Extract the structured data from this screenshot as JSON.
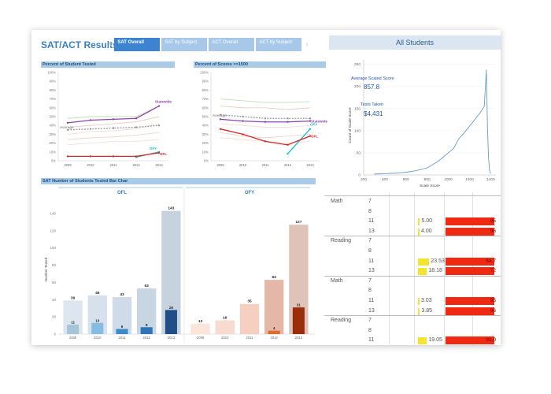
{
  "header": {
    "title": "SAT/ACT Results",
    "tabs": [
      {
        "label": "SAT Overall",
        "active": true
      },
      {
        "label": "SAT by Subject",
        "active": false
      },
      {
        "label": "ACT Overall",
        "active": false
      },
      {
        "label": "ACT by Subject",
        "active": false
      }
    ],
    "prev_arrow": "‹",
    "next_arrow": "›"
  },
  "panels": {
    "percent_tested_title": "Percent of Student Tested",
    "percent_1500_title": "Percent of Scores >=1500",
    "bar_chart_title": "SAT Number of Students Tested Bar Char",
    "all_students_title": "All Students"
  },
  "kpis": {
    "avg_label": "Average Scaled Score",
    "avg_value": "857.8",
    "tests_label": "Tests Taken",
    "tests_value": "$4,431"
  },
  "colors": {
    "accent": "#3a7fc1",
    "statewide": "#8e44ad",
    "ofl": "#d62728",
    "ofy": "#17becf",
    "yellow_bar": "#f3e52b",
    "red_bar": "#f02a12"
  },
  "chart_data": [
    {
      "type": "line",
      "title": "Percent of Student Tested",
      "x": [
        "2009",
        "2010",
        "2011",
        "2012",
        "2013"
      ],
      "ylim": [
        0,
        100
      ],
      "yticks": [
        "0%",
        "10%",
        "20%",
        "30%",
        "40%",
        "50%",
        "60%",
        "70%",
        "80%",
        "90%",
        "100%"
      ],
      "series": [
        {
          "name": "Statewide",
          "values": [
            43,
            46,
            47,
            48,
            62
          ],
          "color": "#8e44ad"
        },
        {
          "name": "Average",
          "values": [
            35,
            36,
            37,
            38,
            40
          ],
          "color": "#999999"
        },
        {
          "name": "OFL",
          "values": [
            5,
            5,
            5,
            5,
            9
          ],
          "color": "#d62728"
        },
        {
          "name": "OFY",
          "values": [
            null,
            null,
            null,
            4,
            10
          ],
          "color": "#17becf"
        },
        {
          "values": [
            48,
            50,
            50,
            50,
            62
          ],
          "color": "#b7dbb4"
        },
        {
          "values": [
            38,
            40,
            42,
            44,
            50
          ],
          "color": "#e8c3bc"
        },
        {
          "values": [
            30,
            33,
            34,
            36,
            42
          ],
          "color": "#f1d7d0"
        },
        {
          "values": [
            24,
            26,
            27,
            29,
            32
          ],
          "color": "#ecd0c7"
        },
        {
          "values": [
            18,
            20,
            22,
            22,
            24
          ],
          "color": "#f3dbd2"
        }
      ]
    },
    {
      "type": "line",
      "title": "Percent of Scores >=1500",
      "x": [
        "2009",
        "2010",
        "2011",
        "2012",
        "2013"
      ],
      "ylim": [
        0,
        100
      ],
      "yticks": [
        "0%",
        "10%",
        "20%",
        "30%",
        "40%",
        "50%",
        "60%",
        "70%",
        "80%",
        "90%",
        "100%"
      ],
      "series": [
        {
          "name": "Statewide",
          "values": [
            47,
            45,
            44,
            44,
            45
          ],
          "color": "#8e44ad"
        },
        {
          "name": "Average",
          "values": [
            52,
            50,
            48,
            48,
            48
          ],
          "color": "#999999"
        },
        {
          "name": "OFL",
          "values": [
            36,
            30,
            22,
            18,
            28
          ],
          "color": "#d62728"
        },
        {
          "name": "OFY",
          "values": [
            null,
            null,
            null,
            8,
            36
          ],
          "color": "#17becf"
        },
        {
          "values": [
            70,
            68,
            66,
            66,
            67
          ],
          "color": "#b7dbb4"
        },
        {
          "values": [
            62,
            60,
            60,
            58,
            60
          ],
          "color": "#e8c3bc"
        },
        {
          "values": [
            42,
            40,
            38,
            38,
            40
          ],
          "color": "#f1d7d0"
        },
        {
          "values": [
            32,
            28,
            26,
            28,
            30
          ],
          "color": "#ecd0c7"
        },
        {
          "values": [
            26,
            24,
            22,
            20,
            22
          ],
          "color": "#f3dbd2"
        }
      ]
    },
    {
      "type": "bar",
      "title": "SAT Number of Students Tested Bar Char",
      "ylabel": "Number Tested",
      "facets": [
        {
          "name": "OFL",
          "categories": [
            "2009",
            "2010",
            "2011",
            "2012",
            "2013"
          ],
          "total": [
            39,
            45,
            43,
            53,
            143
          ],
          "inner": [
            11,
            13,
            6,
            8,
            28
          ],
          "total_colors": [
            "#dde6ef",
            "#d6e1ec",
            "#cfdbe8",
            "#c8d5e3",
            "#c7d2df"
          ],
          "inner_colors": [
            "#a6c6d8",
            "#85bde0",
            "#3a8bc9",
            "#2d74b8",
            "#1f4f86"
          ]
        },
        {
          "name": "OFY",
          "categories": [
            "2009",
            "2010",
            "2011",
            "2012",
            "2013"
          ],
          "total": [
            12,
            16,
            35,
            63,
            127
          ],
          "inner": [
            null,
            null,
            null,
            4,
            31
          ],
          "total_colors": [
            "#fbe5da",
            "#f8dbcf",
            "#f5cfbf",
            "#e5b7a6",
            "#dfc3b9"
          ],
          "inner_colors": [
            "#ffffff",
            "#ffffff",
            "#ffffff",
            "#e36a2e",
            "#9a2d0a"
          ]
        }
      ],
      "yticks": [
        0,
        20,
        40,
        60,
        80,
        100,
        120,
        140
      ],
      "ylim": [
        0,
        150
      ]
    },
    {
      "type": "line",
      "title": "All Students",
      "xlabel": "Scale Score",
      "ylabel": "Count of Scale Score",
      "xticks": [
        200,
        400,
        600,
        800,
        1000,
        1200,
        1400
      ],
      "yticks": [
        0,
        50,
        100,
        150,
        200,
        250
      ],
      "xlim": [
        200,
        1450
      ],
      "ylim": [
        0,
        260
      ],
      "series": [
        {
          "values": [
            [
              300,
              2
            ],
            [
              400,
              3
            ],
            [
              500,
              4
            ],
            [
              600,
              6
            ],
            [
              700,
              10
            ],
            [
              800,
              16
            ],
            [
              900,
              30
            ],
            [
              1000,
              50
            ],
            [
              1050,
              60
            ],
            [
              1100,
              82
            ],
            [
              1150,
              95
            ],
            [
              1200,
              110
            ],
            [
              1250,
              125
            ],
            [
              1300,
              140
            ],
            [
              1340,
              155
            ],
            [
              1360,
              238
            ],
            [
              1370,
              110
            ],
            [
              1380,
              40
            ],
            [
              1390,
              10
            ],
            [
              1400,
              3
            ]
          ],
          "color": "#6a9bc9"
        }
      ]
    }
  ],
  "table": {
    "rows": [
      {
        "subject": "Math",
        "grade": "7",
        "yval": "",
        "ywidth": 0,
        "rval": ""
      },
      {
        "subject": "",
        "grade": "8",
        "yval": "",
        "ywidth": 0,
        "rval": ""
      },
      {
        "subject": "",
        "grade": "11",
        "yval": "5.00",
        "ywidth": 0.04,
        "rval": "95"
      },
      {
        "subject": "",
        "grade": "13",
        "yval": "4.00",
        "ywidth": 0.03,
        "rval": "96"
      },
      {
        "subject": "Reading",
        "grade": "7",
        "yval": "",
        "ywidth": 0,
        "rval": ""
      },
      {
        "subject": "",
        "grade": "8",
        "yval": "",
        "ywidth": 0,
        "rval": ""
      },
      {
        "subject": "",
        "grade": "11",
        "yval": "23.53",
        "ywidth": 0.24,
        "rval": "64.7"
      },
      {
        "subject": "",
        "grade": "13",
        "yval": "18.18",
        "ywidth": 0.19,
        "rval": "72"
      },
      {
        "subject": "Math",
        "grade": "7",
        "yval": "",
        "ywidth": 0,
        "rval": ""
      },
      {
        "subject": "",
        "grade": "8",
        "yval": "",
        "ywidth": 0,
        "rval": ""
      },
      {
        "subject": "",
        "grade": "11",
        "yval": "3.03",
        "ywidth": 0.03,
        "rval": "95"
      },
      {
        "subject": "",
        "grade": "13",
        "yval": "3.85",
        "ywidth": 0.04,
        "rval": "96"
      },
      {
        "subject": "Reading",
        "grade": "7",
        "yval": "",
        "ywidth": 0,
        "rval": ""
      },
      {
        "subject": "",
        "grade": "8",
        "yval": "",
        "ywidth": 0,
        "rval": ""
      },
      {
        "subject": "",
        "grade": "11",
        "yval": "19.05",
        "ywidth": 0.19,
        "rval": "81.0"
      }
    ]
  }
}
